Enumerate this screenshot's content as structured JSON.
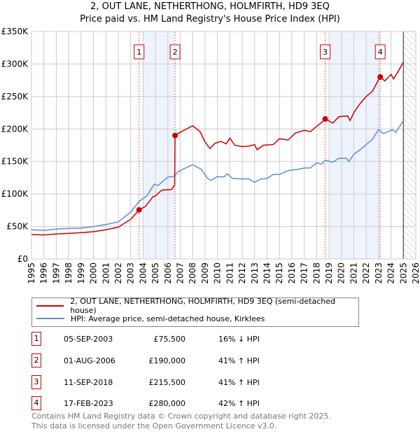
{
  "title_line1": "2, OUT LANE, NETHERTHONG, HOLMFIRTH, HD9 3EQ",
  "title_line2": "Price paid vs. HM Land Registry's House Price Index (HPI)",
  "colors": {
    "red": "#cc0000",
    "blue": "#5b8fd4",
    "shade": "#eef3fc"
  },
  "chart_data": {
    "type": "line",
    "xlim": [
      1995,
      2026
    ],
    "ylim": [
      0,
      350000
    ],
    "x_ticks": [
      "1995",
      "1996",
      "1997",
      "1998",
      "1999",
      "2000",
      "2001",
      "2002",
      "2003",
      "2004",
      "2005",
      "2006",
      "2007",
      "2008",
      "2009",
      "2010",
      "2011",
      "2012",
      "2013",
      "2014",
      "2015",
      "2016",
      "2017",
      "2018",
      "2019",
      "2020",
      "2021",
      "2022",
      "2023",
      "2024",
      "2025",
      "2026"
    ],
    "y_ticks": [
      {
        "v": 0,
        "label": "£0"
      },
      {
        "v": 50000,
        "label": "£50K"
      },
      {
        "v": 100000,
        "label": "£100K"
      },
      {
        "v": 150000,
        "label": "£150K"
      },
      {
        "v": 200000,
        "label": "£200K"
      },
      {
        "v": 250000,
        "label": "£250K"
      },
      {
        "v": 300000,
        "label": "£300K"
      },
      {
        "v": 350000,
        "label": "£350K"
      }
    ],
    "shaded_ranges": [
      [
        2004,
        2006.58
      ],
      [
        2019,
        2023.13
      ]
    ],
    "forecast_from": 2025,
    "series": [
      {
        "name": "2, OUT LANE, NETHERTHONG, HOLMFIRTH, HD9 3EQ (semi-detached house)",
        "color": "#cc0000",
        "points": [
          [
            1995,
            37500
          ],
          [
            1996,
            37000
          ],
          [
            1997,
            38500
          ],
          [
            1998,
            39500
          ],
          [
            1999,
            40500
          ],
          [
            2000,
            42000
          ],
          [
            2001,
            45000
          ],
          [
            2002,
            49000
          ],
          [
            2003,
            61000
          ],
          [
            2003.68,
            75500
          ],
          [
            2004.2,
            81000
          ],
          [
            2004.8,
            96000
          ],
          [
            2005,
            97000
          ],
          [
            2005.5,
            106000
          ],
          [
            2006.3,
            107000
          ],
          [
            2006.55,
            114000
          ],
          [
            2006.58,
            190000
          ],
          [
            2007,
            195000
          ],
          [
            2008,
            205000
          ],
          [
            2008.6,
            196000
          ],
          [
            2009,
            180000
          ],
          [
            2009.4,
            170000
          ],
          [
            2009.8,
            178000
          ],
          [
            2010.3,
            181000
          ],
          [
            2010.7,
            177000
          ],
          [
            2011,
            186000
          ],
          [
            2011.4,
            175000
          ],
          [
            2012,
            173000
          ],
          [
            2012.5,
            173500
          ],
          [
            2013,
            176000
          ],
          [
            2013.2,
            168000
          ],
          [
            2013.7,
            175000
          ],
          [
            2014.5,
            176000
          ],
          [
            2015,
            185000
          ],
          [
            2015.7,
            183000
          ],
          [
            2016.3,
            194000
          ],
          [
            2017,
            198000
          ],
          [
            2017.5,
            196000
          ],
          [
            2018,
            204000
          ],
          [
            2018.4,
            210000
          ],
          [
            2018.69,
            215500
          ],
          [
            2019.3,
            209000
          ],
          [
            2019.8,
            219000
          ],
          [
            2020.5,
            220000
          ],
          [
            2020.7,
            213000
          ],
          [
            2021,
            225000
          ],
          [
            2021.5,
            239000
          ],
          [
            2022,
            250000
          ],
          [
            2022.5,
            258000
          ],
          [
            2023,
            276000
          ],
          [
            2023.13,
            280000
          ],
          [
            2023.5,
            274000
          ],
          [
            2024,
            284000
          ],
          [
            2024.2,
            277000
          ],
          [
            2024.5,
            286000
          ],
          [
            2025,
            303000
          ]
        ]
      },
      {
        "name": "HPI: Average price, semi-detached house, Kirklees",
        "color": "#5b8fd4",
        "points": [
          [
            1995,
            45000
          ],
          [
            1996,
            44000
          ],
          [
            1997,
            46000
          ],
          [
            1998,
            47000
          ],
          [
            1999,
            47500
          ],
          [
            2000,
            50000
          ],
          [
            2001,
            53000
          ],
          [
            2002,
            57000
          ],
          [
            2003,
            72000
          ],
          [
            2003.7,
            89000
          ],
          [
            2004.3,
            97000
          ],
          [
            2004.9,
            115000
          ],
          [
            2005.2,
            113000
          ],
          [
            2006,
            126000
          ],
          [
            2006.5,
            127000
          ],
          [
            2006.8,
            134000
          ],
          [
            2007.2,
            138000
          ],
          [
            2008,
            145000
          ],
          [
            2008.7,
            138000
          ],
          [
            2009.2,
            124000
          ],
          [
            2009.5,
            121000
          ],
          [
            2010,
            127000
          ],
          [
            2010.5,
            126000
          ],
          [
            2010.8,
            131000
          ],
          [
            2011.2,
            124000
          ],
          [
            2012,
            123000
          ],
          [
            2012.5,
            123500
          ],
          [
            2013,
            118000
          ],
          [
            2013.5,
            123000
          ],
          [
            2014,
            124000
          ],
          [
            2014.5,
            130000
          ],
          [
            2015,
            130000
          ],
          [
            2015.7,
            136000
          ],
          [
            2016.5,
            138000
          ],
          [
            2017,
            140000
          ],
          [
            2017.5,
            140000
          ],
          [
            2018,
            148000
          ],
          [
            2018.4,
            146000
          ],
          [
            2018.7,
            152000
          ],
          [
            2019.3,
            149000
          ],
          [
            2019.8,
            155000
          ],
          [
            2020.4,
            155000
          ],
          [
            2020.6,
            150000
          ],
          [
            2021,
            161000
          ],
          [
            2021.5,
            168000
          ],
          [
            2022,
            176000
          ],
          [
            2022.5,
            184000
          ],
          [
            2023,
            199000
          ],
          [
            2023.4,
            193000
          ],
          [
            2023.9,
            197000
          ],
          [
            2024.1,
            199000
          ],
          [
            2024.4,
            195000
          ],
          [
            2025,
            213000
          ]
        ]
      }
    ],
    "sales": [
      {
        "label": "1",
        "x": 2003.68,
        "y": 75500
      },
      {
        "label": "2",
        "x": 2006.58,
        "y": 190000
      },
      {
        "label": "3",
        "x": 2018.69,
        "y": 215500
      },
      {
        "label": "4",
        "x": 2023.13,
        "y": 280000
      }
    ]
  },
  "legend": [
    {
      "label": "2, OUT LANE, NETHERTHONG, HOLMFIRTH, HD9 3EQ (semi-detached house)"
    },
    {
      "label": "HPI: Average price, semi-detached house, Kirklees"
    }
  ],
  "table": [
    {
      "num": "1",
      "date": "05-SEP-2003",
      "price": "£75,500",
      "hpi": "16% ↓ HPI"
    },
    {
      "num": "2",
      "date": "01-AUG-2006",
      "price": "£190,000",
      "hpi": "41% ↑ HPI"
    },
    {
      "num": "3",
      "date": "11-SEP-2018",
      "price": "£215,500",
      "hpi": "41% ↑ HPI"
    },
    {
      "num": "4",
      "date": "17-FEB-2023",
      "price": "£280,000",
      "hpi": "42% ↑ HPI"
    }
  ],
  "footer_line1": "Contains HM Land Registry data © Crown copyright and database right 2025.",
  "footer_line2": "This data is licensed under the Open Government Licence v3.0."
}
